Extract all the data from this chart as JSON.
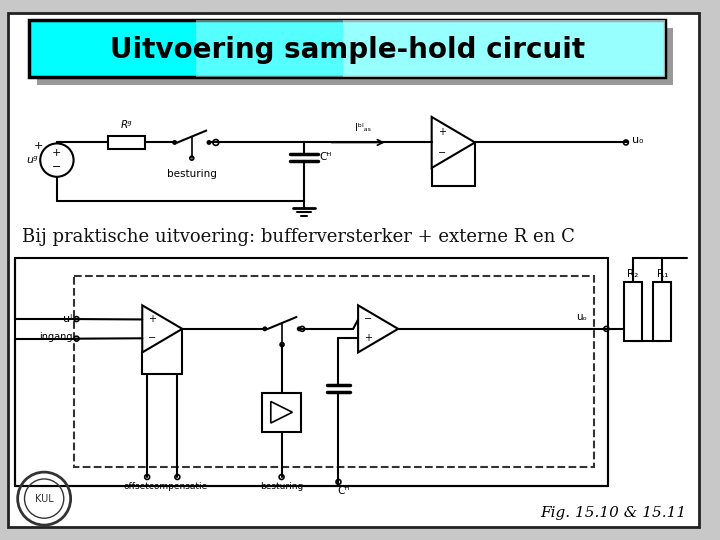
{
  "title": "Uitvoering sample-hold circuit",
  "title_bg": "#00ffff",
  "title_border": "#000000",
  "subtitle": "Bij praktische uitvoering: bufferversterker + externe R en C",
  "figcaption": "Fig. 15.10 & 15.11",
  "bg_color": "#c8c8c8",
  "content_bg": "#ffffff",
  "title_fontsize": 20,
  "subtitle_fontsize": 13,
  "caption_fontsize": 11
}
